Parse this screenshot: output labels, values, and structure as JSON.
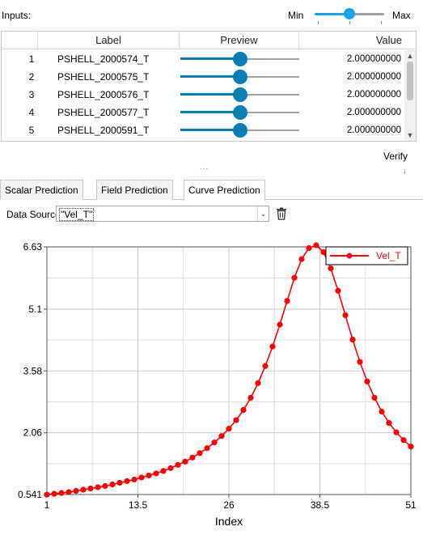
{
  "inputs": {
    "title": "Inputs:",
    "min_label": "Min",
    "max_label": "Max",
    "range_slider": {
      "position_fraction": 0.5,
      "ticks": 3
    }
  },
  "table": {
    "columns": [
      "",
      "Label",
      "Preview",
      "Value"
    ],
    "rows": [
      {
        "index": "1",
        "label": "PSHELL_2000574_T",
        "preview": 0.5,
        "value": "2.000000000"
      },
      {
        "index": "2",
        "label": "PSHELL_2000575_T",
        "preview": 0.5,
        "value": "2.000000000"
      },
      {
        "index": "3",
        "label": "PSHELL_2000576_T",
        "preview": 0.5,
        "value": "2.000000000"
      },
      {
        "index": "4",
        "label": "PSHELL_2000577_T",
        "preview": 0.5,
        "value": "2.000000000"
      },
      {
        "index": "5",
        "label": "PSHELL_2000591_T",
        "preview": 0.5,
        "value": "2.000000000"
      }
    ]
  },
  "verify_label": "Verify",
  "splitter": "...",
  "tabs": [
    {
      "label": "Scalar Prediction",
      "active": false
    },
    {
      "label": "Field Prediction",
      "active": false
    },
    {
      "label": "Curve Prediction",
      "active": true
    }
  ],
  "data_source": {
    "label": "Data Source:",
    "value": "\"Vel_T\""
  },
  "icons": {
    "trash": "trash-icon",
    "dropdown": "chevron-down-icon"
  },
  "colors": {
    "series": "#ff0000",
    "accent": "#0b7fb5",
    "slider": "#1aa3e8"
  },
  "chart_data": {
    "type": "line",
    "xlabel": "Index",
    "ylabel": "",
    "xlim": [
      1,
      51
    ],
    "ylim": [
      0.541,
      6.63
    ],
    "xticks": [
      "1",
      "13.5",
      "26",
      "38.5",
      "51"
    ],
    "yticks": [
      "0.541",
      "2.06",
      "3.58",
      "5.1",
      "6.63"
    ],
    "grid": true,
    "legend_position": "top-right",
    "series": [
      {
        "name": "Vel_T",
        "color": "#ff0000",
        "x": [
          1,
          2,
          3,
          4,
          5,
          6,
          7,
          8,
          9,
          10,
          11,
          12,
          13,
          14,
          15,
          16,
          17,
          18,
          19,
          20,
          21,
          22,
          23,
          24,
          25,
          26,
          27,
          28,
          29,
          30,
          31,
          32,
          33,
          34,
          35,
          36,
          37,
          38,
          39,
          40,
          41,
          42,
          43,
          44,
          45,
          46,
          47,
          48,
          49,
          50,
          51
        ],
        "y": [
          0.54,
          0.56,
          0.58,
          0.6,
          0.63,
          0.66,
          0.69,
          0.72,
          0.75,
          0.79,
          0.83,
          0.87,
          0.91,
          0.96,
          1.01,
          1.06,
          1.12,
          1.19,
          1.27,
          1.35,
          1.45,
          1.56,
          1.68,
          1.82,
          1.98,
          2.16,
          2.37,
          2.62,
          2.92,
          3.28,
          3.7,
          4.18,
          4.72,
          5.3,
          5.87,
          6.33,
          6.6,
          6.67,
          6.5,
          6.1,
          5.55,
          4.95,
          4.35,
          3.8,
          3.32,
          2.92,
          2.58,
          2.3,
          2.07,
          1.88,
          1.72
        ]
      }
    ]
  }
}
